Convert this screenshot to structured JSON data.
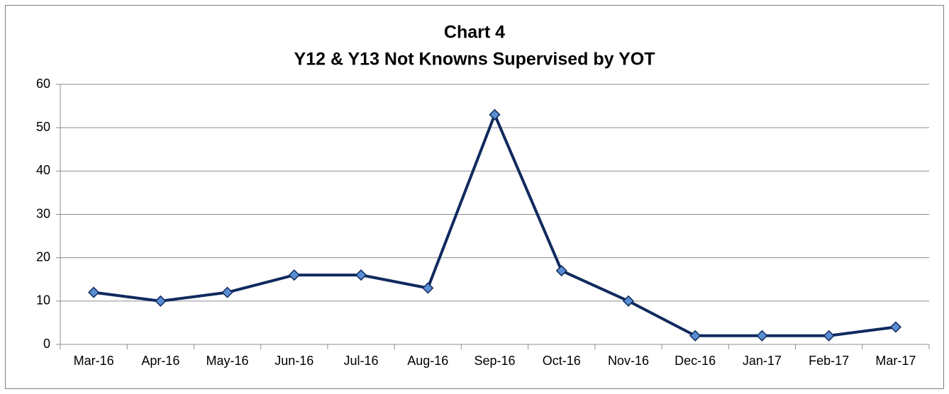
{
  "chart_data": {
    "type": "line",
    "title": "Chart 4",
    "subtitle": "Y12 & Y13 Not Knowns Supervised by YOT",
    "categories": [
      "Mar-16",
      "Apr-16",
      "May-16",
      "Jun-16",
      "Jul-16",
      "Aug-16",
      "Sep-16",
      "Oct-16",
      "Nov-16",
      "Dec-16",
      "Jan-17",
      "Feb-17",
      "Mar-17"
    ],
    "values": [
      12,
      10,
      12,
      16,
      16,
      13,
      53,
      17,
      10,
      2,
      2,
      2,
      4
    ],
    "color": "#0f2a5e",
    "marker_color": "#5a8ed2",
    "ylim": [
      0,
      60
    ],
    "yticks": [
      0,
      10,
      20,
      30,
      40,
      50,
      60
    ],
    "grid": true
  }
}
